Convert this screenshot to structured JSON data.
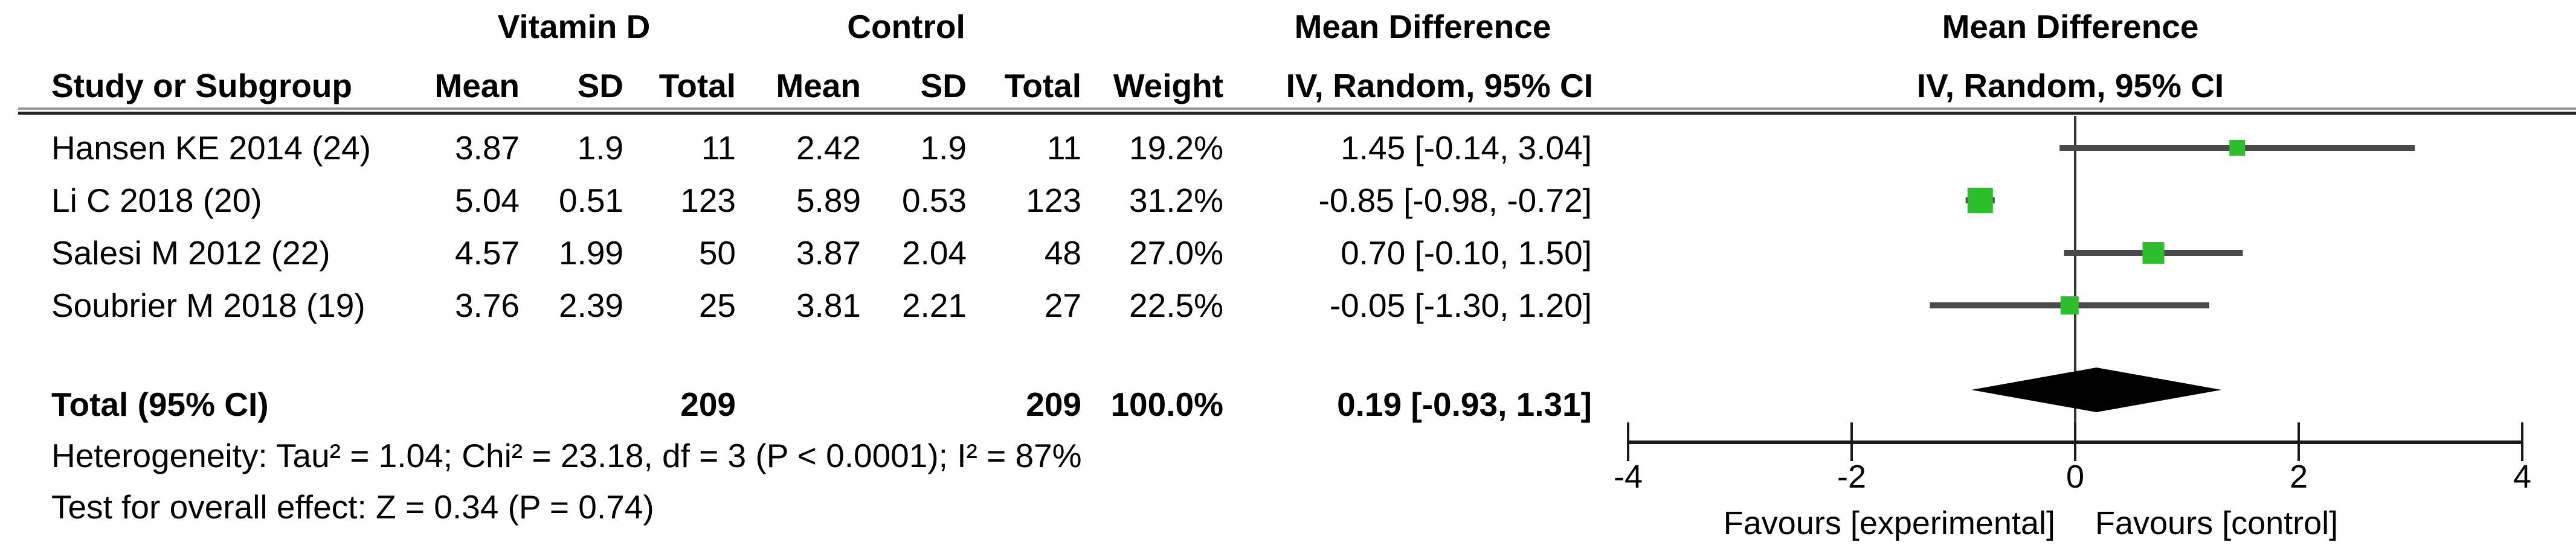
{
  "title_row": {
    "group1": "Vitamin D",
    "group2": "Control",
    "effect_label": "Mean Difference",
    "effect_method": "IV, Random, 95% CI"
  },
  "columns": {
    "study": "Study or Subgroup",
    "mean": "Mean",
    "sd": "SD",
    "total": "Total",
    "weight": "Weight"
  },
  "rows": [
    {
      "study": "Hansen KE 2014",
      "ref": "(24)",
      "e_mean": "3.87",
      "e_sd": "1.9",
      "e_total": "11",
      "c_mean": "2.42",
      "c_sd": "1.9",
      "c_total": "11",
      "weight": "19.2%",
      "ci": "1.45 [-0.14, 3.04]",
      "md": 1.45,
      "lo": -0.14,
      "hi": 3.04,
      "w": 19.2
    },
    {
      "study": "Li C 2018",
      "ref": "(20)",
      "e_mean": "5.04",
      "e_sd": "0.51",
      "e_total": "123",
      "c_mean": "5.89",
      "c_sd": "0.53",
      "c_total": "123",
      "weight": "31.2%",
      "ci": "-0.85 [-0.98, -0.72]",
      "md": -0.85,
      "lo": -0.98,
      "hi": -0.72,
      "w": 31.2
    },
    {
      "study": "Salesi M 2012",
      "ref": "(22)",
      "e_mean": "4.57",
      "e_sd": "1.99",
      "e_total": "50",
      "c_mean": "3.87",
      "c_sd": "2.04",
      "c_total": "48",
      "weight": "27.0%",
      "ci": "0.70 [-0.10, 1.50]",
      "md": 0.7,
      "lo": -0.1,
      "hi": 1.5,
      "w": 27.0
    },
    {
      "study": "Soubrier M 2018",
      "ref": "(19)",
      "e_mean": "3.76",
      "e_sd": "2.39",
      "e_total": "25",
      "c_mean": "3.81",
      "c_sd": "2.21",
      "c_total": "27",
      "weight": "22.5%",
      "ci": "-0.05 [-1.30, 1.20]",
      "md": -0.05,
      "lo": -1.3,
      "hi": 1.2,
      "w": 22.5
    }
  ],
  "total": {
    "label": "Total (95% CI)",
    "e_total": "209",
    "c_total": "209",
    "weight": "100.0%",
    "ci": "0.19 [-0.93, 1.31]",
    "md": 0.19,
    "lo": -0.93,
    "hi": 1.31
  },
  "footer": {
    "heterogeneity": "Heterogeneity: Tau² = 1.04; Chi² = 23.18, df = 3 (P < 0.0001); I² = 87%",
    "test": "Test for overall effect: Z = 0.34 (P = 0.74)"
  },
  "axis": {
    "min": -4,
    "max": 4,
    "tick_values": [
      -4,
      -2,
      0,
      2,
      4
    ],
    "tick_labels": [
      "-4",
      "-2",
      "0",
      "2",
      "4"
    ],
    "favours_left": "Favours [experimental]",
    "favours_right": "Favours [control]"
  },
  "colors": {
    "marker_green": "#2DBE2D",
    "ci_line": "#4a4a4a",
    "diamond": "#000000",
    "axis": "#1a1a1a",
    "text": "#000000"
  },
  "chart_data": {
    "type": "forest",
    "title": "Mean Difference, IV, Random, 95% CI (Vitamin D vs Control)",
    "x_axis": {
      "min": -4,
      "max": 4,
      "ticks": [
        -4,
        -2,
        0,
        2,
        4
      ],
      "label_left": "Favours [experimental]",
      "label_right": "Favours [control]"
    },
    "studies": [
      {
        "name": "Hansen KE 2014",
        "footnote_ref": 24,
        "vitamin_d": {
          "mean": 3.87,
          "sd": 1.9,
          "total": 11
        },
        "control": {
          "mean": 2.42,
          "sd": 1.9,
          "total": 11
        },
        "weight_pct": 19.2,
        "md": 1.45,
        "ci_low": -0.14,
        "ci_high": 3.04
      },
      {
        "name": "Li C 2018",
        "footnote_ref": 20,
        "vitamin_d": {
          "mean": 5.04,
          "sd": 0.51,
          "total": 123
        },
        "control": {
          "mean": 5.89,
          "sd": 0.53,
          "total": 123
        },
        "weight_pct": 31.2,
        "md": -0.85,
        "ci_low": -0.98,
        "ci_high": -0.72
      },
      {
        "name": "Salesi M 2012",
        "footnote_ref": 22,
        "vitamin_d": {
          "mean": 4.57,
          "sd": 1.99,
          "total": 50
        },
        "control": {
          "mean": 3.87,
          "sd": 2.04,
          "total": 48
        },
        "weight_pct": 27.0,
        "md": 0.7,
        "ci_low": -0.1,
        "ci_high": 1.5
      },
      {
        "name": "Soubrier M 2018",
        "footnote_ref": 19,
        "vitamin_d": {
          "mean": 3.76,
          "sd": 2.39,
          "total": 25
        },
        "control": {
          "mean": 3.81,
          "sd": 2.21,
          "total": 27
        },
        "weight_pct": 22.5,
        "md": -0.05,
        "ci_low": -1.3,
        "ci_high": 1.2
      }
    ],
    "total": {
      "vitamin_d_total": 209,
      "control_total": 209,
      "weight_pct": 100.0,
      "md": 0.19,
      "ci_low": -0.93,
      "ci_high": 1.31
    },
    "heterogeneity": {
      "tau2": 1.04,
      "chi2": 23.18,
      "df": 3,
      "p": "< 0.0001",
      "i2_pct": 87
    },
    "overall_effect": {
      "z": 0.34,
      "p": 0.74
    }
  }
}
